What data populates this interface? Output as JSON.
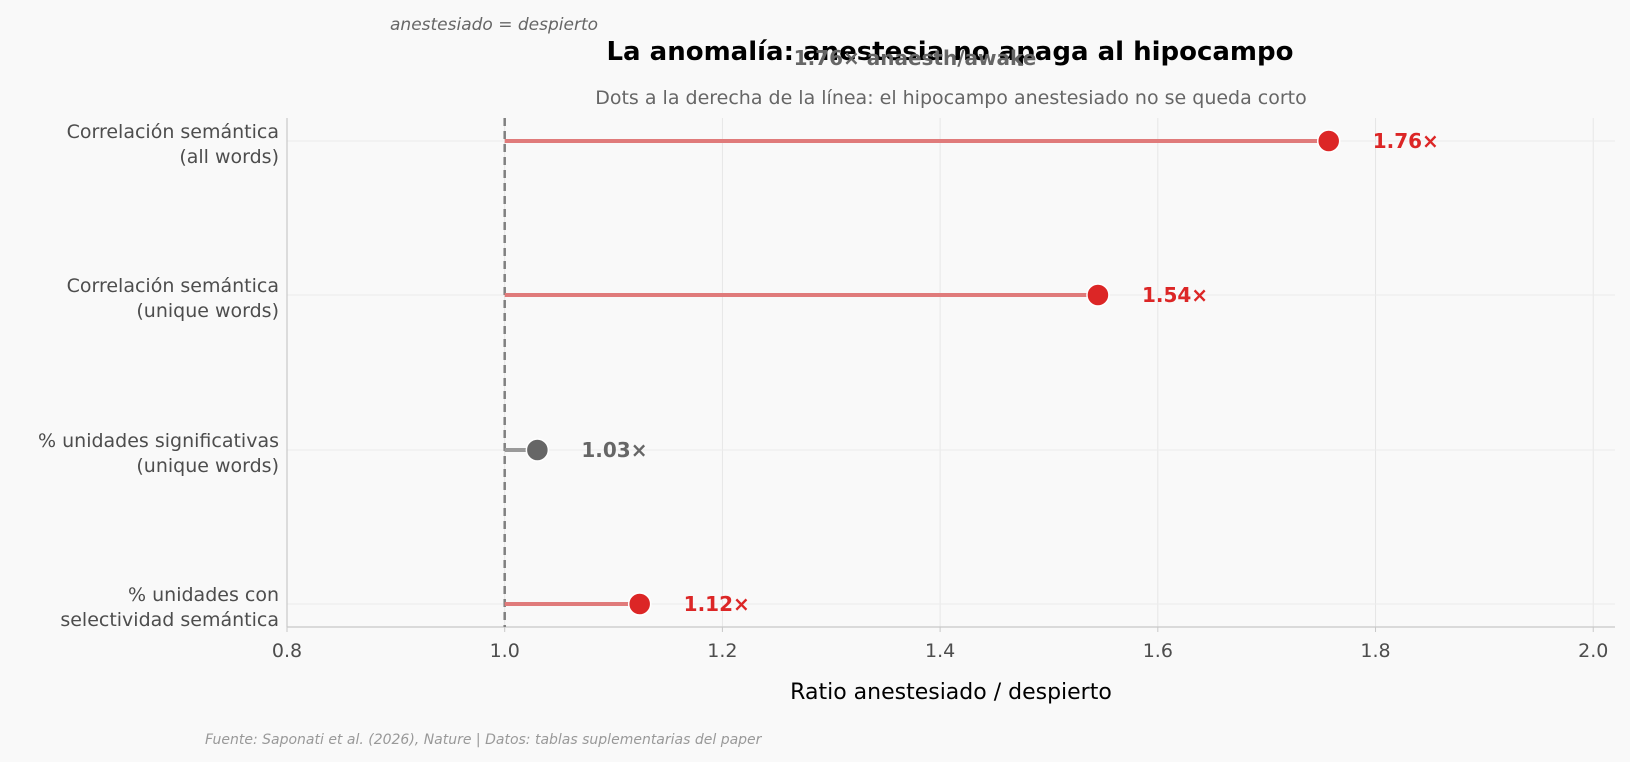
{
  "chart_data": {
    "type": "lollipop",
    "title": "La anomalía: anestesia no apaga al hipocampo",
    "overlay_label": "1.76× anaesth/awake",
    "subtitle": "Dots a la derecha de la línea: el hipocampo anestesiado no se queda corto",
    "reference_annotation": "anestesiado = despierto",
    "xlabel": "Ratio anestesiado / despierto",
    "xlim": [
      0.8,
      2.02
    ],
    "xticks": [
      0.8,
      1.0,
      1.2,
      1.4,
      1.6,
      1.8,
      2.0
    ],
    "xtick_labels": [
      "0.8",
      "1.0",
      "1.2",
      "1.4",
      "1.6",
      "1.8",
      "2.0"
    ],
    "reference_value": 1.0,
    "grid": true,
    "categories": [
      {
        "line1": "Correlación semántica",
        "line2": "(all words)"
      },
      {
        "line1": "Correlación semántica",
        "line2": "(unique words)"
      },
      {
        "line1": "% unidades significativas",
        "line2": "(unique words)"
      },
      {
        "line1": "% unidades con",
        "line2": "selectividad semántica"
      }
    ],
    "values": [
      1.757,
      1.545,
      1.03,
      1.124
    ],
    "value_labels": [
      "1.76×",
      "1.54×",
      "1.03×",
      "1.12×"
    ],
    "colors": [
      "#dc2626",
      "#dc2626",
      "#666666",
      "#dc2626"
    ],
    "source": "Fuente: Saponati et al. (2026), Nature | Datos: tablas suplementarias del paper"
  }
}
